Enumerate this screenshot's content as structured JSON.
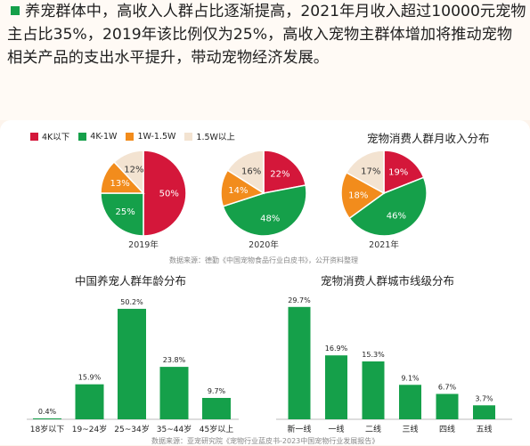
{
  "intro": {
    "text": "养宠群体中，高收入人群占比逐渐提高，2021年月收入超过10000元宠物主占比35%，2019年该比例仅为25%，高收入宠物主群体增加将推动宠物相关产品的支出水平提升，带动宠物经济发展。"
  },
  "colors": {
    "red": "#d4173a",
    "green": "#15a04a",
    "orange": "#f28c1c",
    "beige": "#f3e3d1"
  },
  "source1": "数据来源：德勤《中国宠物食品行业白皮书》，公开资料整理",
  "source2": "数据来源：亚宠研究院《宠物行业蓝皮书-2023中国宠物行业发展报告》",
  "chart_data": [
    {
      "type": "pie",
      "title": "宠物消费人群月收入分布",
      "legend": [
        "4K以下",
        "4K-1W",
        "1W-1.5W",
        "1.5W以上"
      ],
      "legend_position": "top-left",
      "pies": [
        {
          "label": "2019年",
          "values": [
            50,
            25,
            13,
            12
          ]
        },
        {
          "label": "2020年",
          "values": [
            22,
            48,
            14,
            16
          ]
        },
        {
          "label": "2021年",
          "values": [
            19,
            46,
            18,
            17
          ]
        }
      ]
    },
    {
      "type": "bar",
      "title": "中国养宠人群年龄分布",
      "categories": [
        "18岁以下",
        "19~24岁",
        "25~34岁",
        "35~44岁",
        "45岁以上"
      ],
      "values": [
        0.4,
        15.9,
        50.2,
        23.8,
        9.7
      ],
      "value_labels": [
        "0.4%",
        "15.9%",
        "50.2%",
        "23.8%",
        "9.7%"
      ],
      "ylim": [
        0,
        55
      ]
    },
    {
      "type": "bar",
      "title": "宠物消费人群城市线级分布",
      "categories": [
        "新一线",
        "一线",
        "二线",
        "三线",
        "四线",
        "五线"
      ],
      "values": [
        29.7,
        16.9,
        15.3,
        9.1,
        6.7,
        3.7
      ],
      "value_labels": [
        "29.7%",
        "16.9%",
        "15.3%",
        "9.1%",
        "6.7%",
        "3.7%"
      ],
      "ylim": [
        0,
        32
      ]
    }
  ]
}
